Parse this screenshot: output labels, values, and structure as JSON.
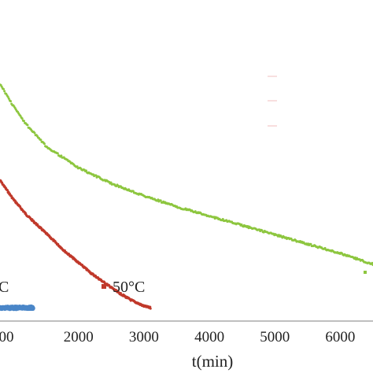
{
  "chart_data": {
    "type": "scatter",
    "title": "",
    "xlabel": "t(min)",
    "ylabel": "",
    "xlim": [
      800,
      6500
    ],
    "x_ticks": [
      "2000",
      "3000",
      "4000",
      "5000",
      "6000"
    ],
    "x_tick_partial_label": "00",
    "grid": false,
    "series": [
      {
        "label": "50°C",
        "color": "#c0392b",
        "x": [
          800,
          1000,
          1200,
          1400,
          1600,
          1800,
          2000,
          2200,
          2400,
          2600,
          2800,
          3000,
          3100
        ],
        "y": [
          0.42,
          0.36,
          0.31,
          0.27,
          0.23,
          0.19,
          0.155,
          0.12,
          0.09,
          0.06,
          0.035,
          0.015,
          0.01
        ]
      },
      {
        "label": "C",
        "color": "#4a86c8",
        "x": [
          800,
          900,
          1000,
          1100,
          1200,
          1300
        ],
        "y": [
          0.01,
          0.01,
          0.01,
          0.01,
          0.01,
          0.01
        ]
      },
      {
        "label": "",
        "color": "#8dc63f",
        "x": [
          800,
          1000,
          1200,
          1500,
          2000,
          2500,
          3000,
          3500,
          4000,
          4500,
          5000,
          5500,
          6000,
          6500
        ],
        "y": [
          0.73,
          0.66,
          0.6,
          0.53,
          0.46,
          0.41,
          0.37,
          0.335,
          0.305,
          0.275,
          0.245,
          0.215,
          0.185,
          0.15
        ]
      }
    ]
  }
}
